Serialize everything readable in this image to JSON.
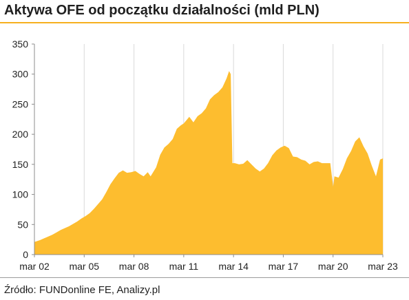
{
  "chart_data": {
    "type": "area",
    "title": "Aktywa OFE od początku działalności (mld PLN)",
    "xlabel": "",
    "ylabel": "",
    "x_tick_labels": [
      "mar 02",
      "mar 05",
      "mar 08",
      "mar 11",
      "mar 14",
      "mar 17",
      "mar 20",
      "mar 23"
    ],
    "x_ticks": [
      2002.167,
      2005.167,
      2008.167,
      2011.167,
      2014.167,
      2017.167,
      2020.167,
      2023.167
    ],
    "xlim": [
      2002.167,
      2023.167
    ],
    "ylim": [
      0,
      350
    ],
    "y_ticks": [
      0,
      50,
      100,
      150,
      200,
      250,
      300,
      350
    ],
    "grid": "vertical",
    "fill_color": "#fdbd2f",
    "series": [
      {
        "x": [
          2002.17,
          2002.5,
          2002.75,
          2003.0,
          2003.25,
          2003.5,
          2003.75,
          2004.0,
          2004.25,
          2004.5,
          2004.75,
          2005.0,
          2005.25,
          2005.5,
          2005.75,
          2006.0,
          2006.25,
          2006.5,
          2006.75,
          2007.0,
          2007.25,
          2007.5,
          2007.75,
          2008.0,
          2008.25,
          2008.5,
          2008.75,
          2009.0,
          2009.17,
          2009.5,
          2009.75,
          2010.0,
          2010.25,
          2010.5,
          2010.75,
          2011.0,
          2011.17,
          2011.5,
          2011.75,
          2012.0,
          2012.25,
          2012.5,
          2012.75,
          2013.0,
          2013.25,
          2013.5,
          2013.75,
          2013.9,
          2014.0,
          2014.1,
          2014.25,
          2014.5,
          2014.75,
          2015.0,
          2015.25,
          2015.5,
          2015.75,
          2016.0,
          2016.25,
          2016.5,
          2016.75,
          2017.0,
          2017.25,
          2017.5,
          2017.75,
          2018.0,
          2018.25,
          2018.5,
          2018.75,
          2019.0,
          2019.25,
          2019.5,
          2019.75,
          2020.0,
          2020.17,
          2020.25,
          2020.5,
          2020.75,
          2021.0,
          2021.25,
          2021.5,
          2021.75,
          2022.0,
          2022.25,
          2022.5,
          2022.75,
          2023.0,
          2023.17
        ],
        "values": [
          21,
          24,
          27,
          30,
          33,
          37,
          41,
          44,
          47,
          51,
          55,
          60,
          64,
          69,
          76,
          84,
          92,
          104,
          117,
          127,
          136,
          140,
          136,
          137,
          139,
          134,
          130,
          137,
          130,
          145,
          166,
          178,
          184,
          192,
          209,
          215,
          218,
          229,
          220,
          230,
          235,
          243,
          258,
          265,
          270,
          278,
          293,
          305,
          300,
          152,
          152,
          150,
          151,
          157,
          150,
          143,
          138,
          143,
          152,
          165,
          173,
          178,
          181,
          177,
          163,
          162,
          158,
          156,
          150,
          154,
          155,
          152,
          152,
          152,
          113,
          130,
          128,
          142,
          160,
          172,
          188,
          195,
          180,
          168,
          148,
          130,
          158,
          160
        ]
      }
    ]
  },
  "source_note": "Źródło: FUNDonline FE, Analizy.pl"
}
